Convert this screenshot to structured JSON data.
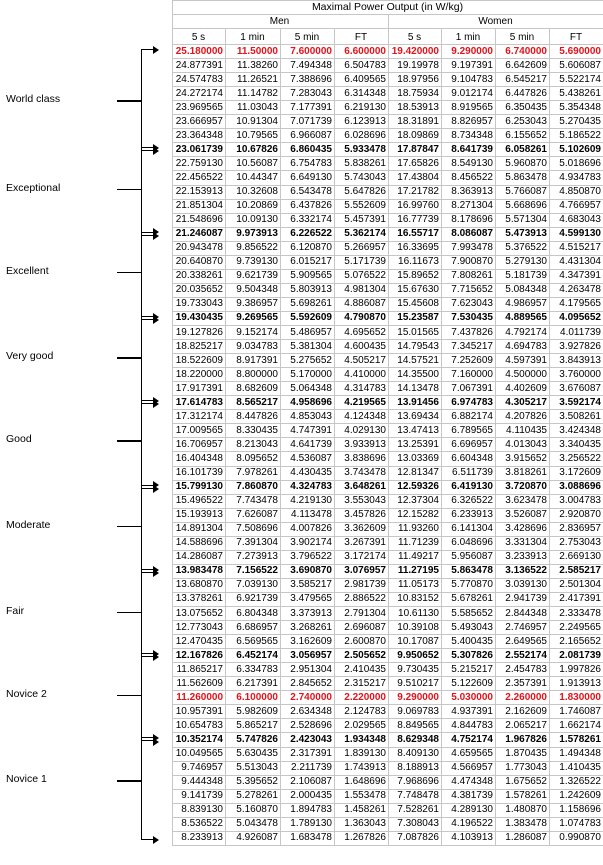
{
  "title": "Maximal Power Output (in W/kg)",
  "groups": [
    "Men",
    "Women"
  ],
  "columns": [
    "5 s",
    "1 min",
    "5 min",
    "FT",
    "5 s",
    "1 min",
    "5 min",
    "FT"
  ],
  "categories": [
    "World class",
    "Exceptional",
    "Excellent",
    "Very good",
    "Good",
    "Moderate",
    "Fair",
    "Novice 2",
    "Novice 1"
  ],
  "rows": [
    {
      "v": [
        "25.180000",
        "11.50000",
        "7.600000",
        "6.600000",
        "19.420000",
        "9.290000",
        "6.740000",
        "5.690000"
      ],
      "style": "red"
    },
    {
      "v": [
        "24.877391",
        "11.38260",
        "7.494348",
        "6.504783",
        "19.19978",
        "9.197391",
        "6.642609",
        "5.606087"
      ],
      "style": ""
    },
    {
      "v": [
        "24.574783",
        "11.26521",
        "7.388696",
        "6.409565",
        "18.97956",
        "9.104783",
        "6.545217",
        "5.522174"
      ],
      "style": ""
    },
    {
      "v": [
        "24.272174",
        "11.14782",
        "7.283043",
        "6.314348",
        "18.75934",
        "9.012174",
        "6.447826",
        "5.438261"
      ],
      "style": ""
    },
    {
      "v": [
        "23.969565",
        "11.03043",
        "7.177391",
        "6.219130",
        "18.53913",
        "8.919565",
        "6.350435",
        "5.354348"
      ],
      "style": ""
    },
    {
      "v": [
        "23.666957",
        "10.91304",
        "7.071739",
        "6.123913",
        "18.31891",
        "8.826957",
        "6.253043",
        "5.270435"
      ],
      "style": ""
    },
    {
      "v": [
        "23.364348",
        "10.79565",
        "6.966087",
        "6.028696",
        "18.09869",
        "8.734348",
        "6.155652",
        "5.186522"
      ],
      "style": ""
    },
    {
      "v": [
        "23.061739",
        "10.67826",
        "6.860435",
        "5.933478",
        "17.87847",
        "8.641739",
        "6.058261",
        "5.102609"
      ],
      "style": "bold"
    },
    {
      "v": [
        "22.759130",
        "10.56087",
        "6.754783",
        "5.838261",
        "17.65826",
        "8.549130",
        "5.960870",
        "5.018696"
      ],
      "style": ""
    },
    {
      "v": [
        "22.456522",
        "10.44347",
        "6.649130",
        "5.743043",
        "17.43804",
        "8.456522",
        "5.863478",
        "4.934783"
      ],
      "style": ""
    },
    {
      "v": [
        "22.153913",
        "10.32608",
        "6.543478",
        "5.647826",
        "17.21782",
        "8.363913",
        "5.766087",
        "4.850870"
      ],
      "style": ""
    },
    {
      "v": [
        "21.851304",
        "10.20869",
        "6.437826",
        "5.552609",
        "16.99760",
        "8.271304",
        "5.668696",
        "4.766957"
      ],
      "style": ""
    },
    {
      "v": [
        "21.548696",
        "10.09130",
        "6.332174",
        "5.457391",
        "16.77739",
        "8.178696",
        "5.571304",
        "4.683043"
      ],
      "style": ""
    },
    {
      "v": [
        "21.246087",
        "9.973913",
        "6.226522",
        "5.362174",
        "16.55717",
        "8.086087",
        "5.473913",
        "4.599130"
      ],
      "style": "bold"
    },
    {
      "v": [
        "20.943478",
        "9.856522",
        "6.120870",
        "5.266957",
        "16.33695",
        "7.993478",
        "5.376522",
        "4.515217"
      ],
      "style": ""
    },
    {
      "v": [
        "20.640870",
        "9.739130",
        "6.015217",
        "5.171739",
        "16.11673",
        "7.900870",
        "5.279130",
        "4.431304"
      ],
      "style": ""
    },
    {
      "v": [
        "20.338261",
        "9.621739",
        "5.909565",
        "5.076522",
        "15.89652",
        "7.808261",
        "5.181739",
        "4.347391"
      ],
      "style": ""
    },
    {
      "v": [
        "20.035652",
        "9.504348",
        "5.803913",
        "4.981304",
        "15.67630",
        "7.715652",
        "5.084348",
        "4.263478"
      ],
      "style": ""
    },
    {
      "v": [
        "19.733043",
        "9.386957",
        "5.698261",
        "4.886087",
        "15.45608",
        "7.623043",
        "4.986957",
        "4.179565"
      ],
      "style": ""
    },
    {
      "v": [
        "19.430435",
        "9.269565",
        "5.592609",
        "4.790870",
        "15.23587",
        "7.530435",
        "4.889565",
        "4.095652"
      ],
      "style": "bold"
    },
    {
      "v": [
        "19.127826",
        "9.152174",
        "5.486957",
        "4.695652",
        "15.01565",
        "7.437826",
        "4.792174",
        "4.011739"
      ],
      "style": ""
    },
    {
      "v": [
        "18.825217",
        "9.034783",
        "5.381304",
        "4.600435",
        "14.79543",
        "7.345217",
        "4.694783",
        "3.927826"
      ],
      "style": ""
    },
    {
      "v": [
        "18.522609",
        "8.917391",
        "5.275652",
        "4.505217",
        "14.57521",
        "7.252609",
        "4.597391",
        "3.843913"
      ],
      "style": ""
    },
    {
      "v": [
        "18.220000",
        "8.800000",
        "5.170000",
        "4.410000",
        "14.35500",
        "7.160000",
        "4.500000",
        "3.760000"
      ],
      "style": ""
    },
    {
      "v": [
        "17.917391",
        "8.682609",
        "5.064348",
        "4.314783",
        "14.13478",
        "7.067391",
        "4.402609",
        "3.676087"
      ],
      "style": ""
    },
    {
      "v": [
        "17.614783",
        "8.565217",
        "4.958696",
        "4.219565",
        "13.91456",
        "6.974783",
        "4.305217",
        "3.592174"
      ],
      "style": "bold"
    },
    {
      "v": [
        "17.312174",
        "8.447826",
        "4.853043",
        "4.124348",
        "13.69434",
        "6.882174",
        "4.207826",
        "3.508261"
      ],
      "style": ""
    },
    {
      "v": [
        "17.009565",
        "8.330435",
        "4.747391",
        "4.029130",
        "13.47413",
        "6.789565",
        "4.110435",
        "3.424348"
      ],
      "style": ""
    },
    {
      "v": [
        "16.706957",
        "8.213043",
        "4.641739",
        "3.933913",
        "13.25391",
        "6.696957",
        "4.013043",
        "3.340435"
      ],
      "style": ""
    },
    {
      "v": [
        "16.404348",
        "8.095652",
        "4.536087",
        "3.838696",
        "13.03369",
        "6.604348",
        "3.915652",
        "3.256522"
      ],
      "style": ""
    },
    {
      "v": [
        "16.101739",
        "7.978261",
        "4.430435",
        "3.743478",
        "12.81347",
        "6.511739",
        "3.818261",
        "3.172609"
      ],
      "style": ""
    },
    {
      "v": [
        "15.799130",
        "7.860870",
        "4.324783",
        "3.648261",
        "12.59326",
        "6.419130",
        "3.720870",
        "3.088696"
      ],
      "style": "bold"
    },
    {
      "v": [
        "15.496522",
        "7.743478",
        "4.219130",
        "3.553043",
        "12.37304",
        "6.326522",
        "3.623478",
        "3.004783"
      ],
      "style": ""
    },
    {
      "v": [
        "15.193913",
        "7.626087",
        "4.113478",
        "3.457826",
        "12.15282",
        "6.233913",
        "3.526087",
        "2.920870"
      ],
      "style": ""
    },
    {
      "v": [
        "14.891304",
        "7.508696",
        "4.007826",
        "3.362609",
        "11.93260",
        "6.141304",
        "3.428696",
        "2.836957"
      ],
      "style": ""
    },
    {
      "v": [
        "14.588696",
        "7.391304",
        "3.902174",
        "3.267391",
        "11.71239",
        "6.048696",
        "3.331304",
        "2.753043"
      ],
      "style": ""
    },
    {
      "v": [
        "14.286087",
        "7.273913",
        "3.796522",
        "3.172174",
        "11.49217",
        "5.956087",
        "3.233913",
        "2.669130"
      ],
      "style": ""
    },
    {
      "v": [
        "13.983478",
        "7.156522",
        "3.690870",
        "3.076957",
        "11.27195",
        "5.863478",
        "3.136522",
        "2.585217"
      ],
      "style": "bold"
    },
    {
      "v": [
        "13.680870",
        "7.039130",
        "3.585217",
        "2.981739",
        "11.05173",
        "5.770870",
        "3.039130",
        "2.501304"
      ],
      "style": ""
    },
    {
      "v": [
        "13.378261",
        "6.921739",
        "3.479565",
        "2.886522",
        "10.83152",
        "5.678261",
        "2.941739",
        "2.417391"
      ],
      "style": ""
    },
    {
      "v": [
        "13.075652",
        "6.804348",
        "3.373913",
        "2.791304",
        "10.61130",
        "5.585652",
        "2.844348",
        "2.333478"
      ],
      "style": ""
    },
    {
      "v": [
        "12.773043",
        "6.686957",
        "3.268261",
        "2.696087",
        "10.39108",
        "5.493043",
        "2.746957",
        "2.249565"
      ],
      "style": ""
    },
    {
      "v": [
        "12.470435",
        "6.569565",
        "3.162609",
        "2.600870",
        "10.17087",
        "5.400435",
        "2.649565",
        "2.165652"
      ],
      "style": ""
    },
    {
      "v": [
        "12.167826",
        "6.452174",
        "3.056957",
        "2.505652",
        "9.950652",
        "5.307826",
        "2.552174",
        "2.081739"
      ],
      "style": "bold"
    },
    {
      "v": [
        "11.865217",
        "6.334783",
        "2.951304",
        "2.410435",
        "9.730435",
        "5.215217",
        "2.454783",
        "1.997826"
      ],
      "style": ""
    },
    {
      "v": [
        "11.562609",
        "6.217391",
        "2.845652",
        "2.315217",
        "9.510217",
        "5.122609",
        "2.357391",
        "1.913913"
      ],
      "style": ""
    },
    {
      "v": [
        "11.260000",
        "6.100000",
        "2.740000",
        "2.220000",
        "9.290000",
        "5.030000",
        "2.260000",
        "1.830000"
      ],
      "style": "red"
    },
    {
      "v": [
        "10.957391",
        "5.982609",
        "2.634348",
        "2.124783",
        "9.069783",
        "4.937391",
        "2.162609",
        "1.746087"
      ],
      "style": ""
    },
    {
      "v": [
        "10.654783",
        "5.865217",
        "2.528696",
        "2.029565",
        "8.849565",
        "4.844783",
        "2.065217",
        "1.662174"
      ],
      "style": ""
    },
    {
      "v": [
        "10.352174",
        "5.747826",
        "2.423043",
        "1.934348",
        "8.629348",
        "4.752174",
        "1.967826",
        "1.578261"
      ],
      "style": "bold"
    },
    {
      "v": [
        "10.049565",
        "5.630435",
        "2.317391",
        "1.839130",
        "8.409130",
        "4.659565",
        "1.870435",
        "1.494348"
      ],
      "style": ""
    },
    {
      "v": [
        "9.746957",
        "5.513043",
        "2.211739",
        "1.743913",
        "8.188913",
        "4.566957",
        "1.773043",
        "1.410435"
      ],
      "style": ""
    },
    {
      "v": [
        "9.444348",
        "5.395652",
        "2.106087",
        "1.648696",
        "7.968696",
        "4.474348",
        "1.675652",
        "1.326522"
      ],
      "style": ""
    },
    {
      "v": [
        "9.141739",
        "5.278261",
        "2.000435",
        "1.553478",
        "7.748478",
        "4.381739",
        "1.578261",
        "1.242609"
      ],
      "style": ""
    },
    {
      "v": [
        "8.839130",
        "5.160870",
        "1.894783",
        "1.458261",
        "7.528261",
        "4.289130",
        "1.480870",
        "1.158696"
      ],
      "style": ""
    },
    {
      "v": [
        "8.536522",
        "5.043478",
        "1.789130",
        "1.363043",
        "7.308043",
        "4.196522",
        "1.383478",
        "1.074783"
      ],
      "style": ""
    },
    {
      "v": [
        "8.233913",
        "4.926087",
        "1.683478",
        "1.267826",
        "7.087826",
        "4.103913",
        "1.286087",
        "0.990870"
      ],
      "style": ""
    }
  ]
}
